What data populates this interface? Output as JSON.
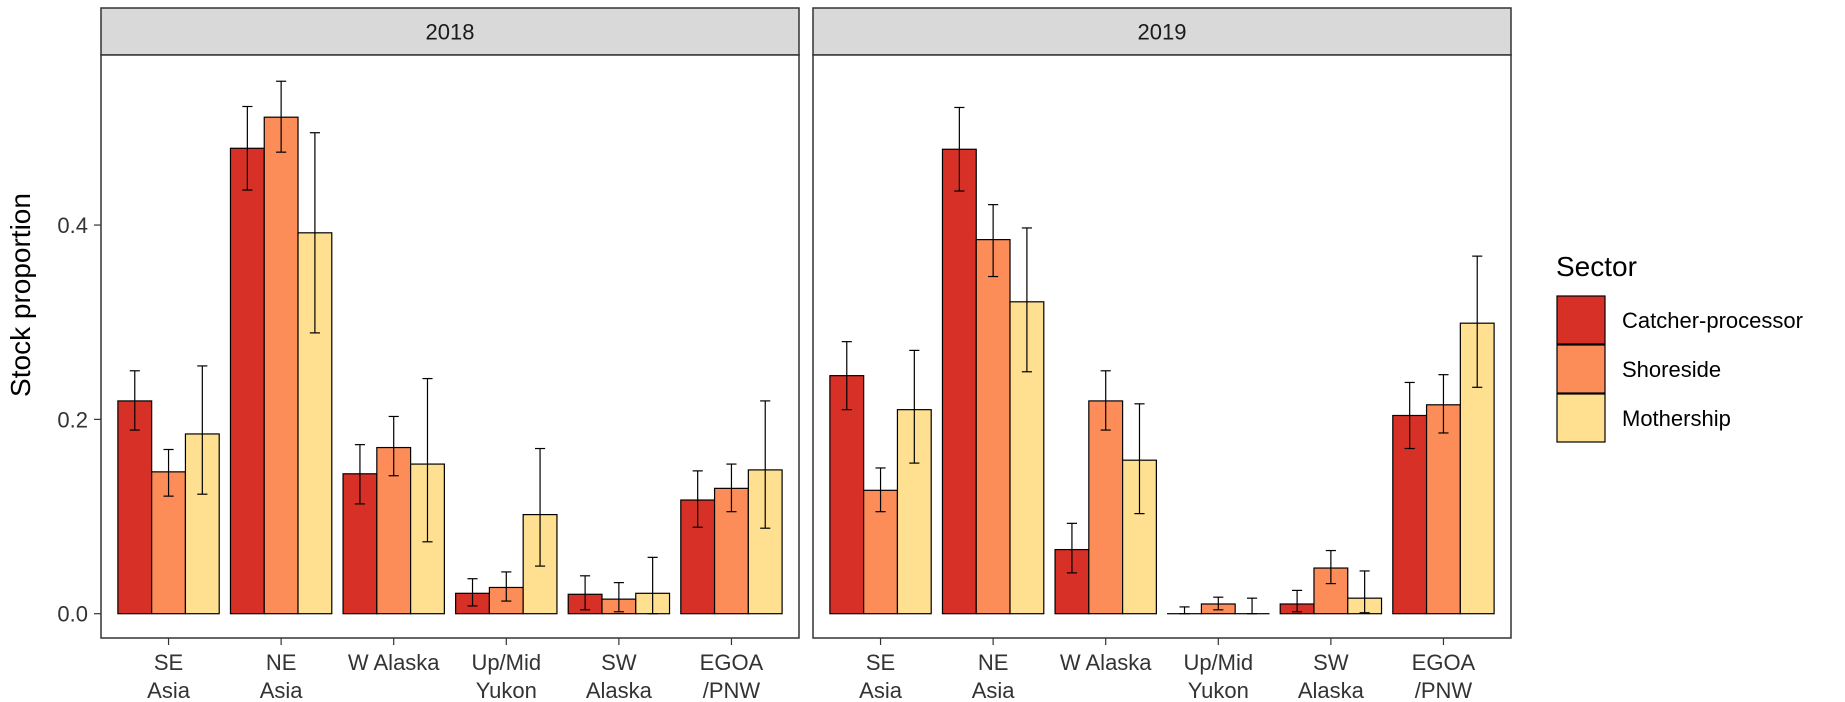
{
  "chart_data": {
    "type": "bar",
    "ylabel": "Stock proportion",
    "xlabel": "",
    "ylim": [
      -0.025,
      0.575
    ],
    "yticks": [
      "0.0",
      "0.2",
      "0.4"
    ],
    "categories": [
      "SE\nAsia",
      "NE\nAsia",
      "W Alaska",
      "Up/Mid\nYukon",
      "SW\nAlaska",
      "EGOA\n/PNW"
    ],
    "legend": {
      "title": "Sector",
      "position": "right"
    },
    "series_meta": [
      {
        "name": "Catcher-processor",
        "color": "#D73027"
      },
      {
        "name": "Shoreside",
        "color": "#FC8D59"
      },
      {
        "name": "Mothership",
        "color": "#FEE090"
      }
    ],
    "panels": [
      {
        "title": "2018",
        "series": [
          {
            "name": "Catcher-processor",
            "values": [
              0.219,
              0.479,
              0.144,
              0.021,
              0.02,
              0.117
            ],
            "lower": [
              0.189,
              0.436,
              0.113,
              0.008,
              0.004,
              0.089
            ],
            "upper": [
              0.25,
              0.522,
              0.174,
              0.036,
              0.039,
              0.147
            ]
          },
          {
            "name": "Shoreside",
            "values": [
              0.146,
              0.511,
              0.171,
              0.027,
              0.015,
              0.129
            ],
            "lower": [
              0.121,
              0.475,
              0.142,
              0.013,
              0.002,
              0.105
            ],
            "upper": [
              0.169,
              0.548,
              0.203,
              0.043,
              0.032,
              0.154
            ]
          },
          {
            "name": "Mothership",
            "values": [
              0.185,
              0.392,
              0.154,
              0.102,
              0.021,
              0.148
            ],
            "lower": [
              0.123,
              0.289,
              0.074,
              0.049,
              0.0,
              0.088
            ],
            "upper": [
              0.255,
              0.495,
              0.242,
              0.17,
              0.058,
              0.219
            ]
          }
        ]
      },
      {
        "title": "2019",
        "series": [
          {
            "name": "Catcher-processor",
            "values": [
              0.245,
              0.478,
              0.066,
              0.0,
              0.01,
              0.204
            ],
            "lower": [
              0.21,
              0.435,
              0.042,
              0.0,
              0.002,
              0.17
            ],
            "upper": [
              0.28,
              0.521,
              0.093,
              0.007,
              0.024,
              0.238
            ]
          },
          {
            "name": "Shoreside",
            "values": [
              0.127,
              0.385,
              0.219,
              0.01,
              0.047,
              0.215
            ],
            "lower": [
              0.105,
              0.347,
              0.189,
              0.004,
              0.031,
              0.186
            ],
            "upper": [
              0.15,
              0.421,
              0.25,
              0.017,
              0.065,
              0.246
            ]
          },
          {
            "name": "Mothership",
            "values": [
              0.21,
              0.321,
              0.158,
              0.0,
              0.016,
              0.299
            ],
            "lower": [
              0.155,
              0.249,
              0.103,
              0.0,
              0.001,
              0.233
            ],
            "upper": [
              0.271,
              0.397,
              0.216,
              0.016,
              0.044,
              0.368
            ]
          }
        ]
      }
    ]
  }
}
